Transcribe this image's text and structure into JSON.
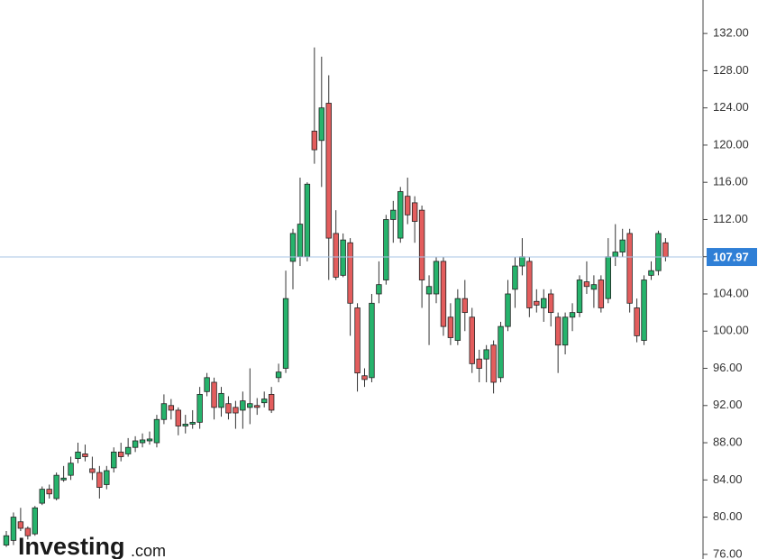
{
  "chart_data": {
    "type": "candlestick",
    "logo": {
      "brand": "Investing",
      "suffix": ".com"
    },
    "up_color": "#26b36c",
    "down_color": "#e35d5d",
    "ylim": [
      75.5,
      135.6
    ],
    "yticks": [
      {
        "value": 76,
        "label": "76.00"
      },
      {
        "value": 80,
        "label": "80.00"
      },
      {
        "value": 84,
        "label": "84.00"
      },
      {
        "value": 88,
        "label": "88.00"
      },
      {
        "value": 92,
        "label": "92.00"
      },
      {
        "value": 96,
        "label": "96.00"
      },
      {
        "value": 100,
        "label": "100.00"
      },
      {
        "value": 104,
        "label": "104.00"
      },
      {
        "value": 108,
        "label": "108.00"
      },
      {
        "value": 112,
        "label": "112.00"
      },
      {
        "value": 116,
        "label": "116.00"
      },
      {
        "value": 120,
        "label": "120.00"
      },
      {
        "value": 124,
        "label": "124.00"
      },
      {
        "value": 128,
        "label": "128.00"
      },
      {
        "value": 132,
        "label": "132.00"
      }
    ],
    "last_price": 107.97,
    "last_price_color": "#2f7fd6",
    "open": [
      77,
      77.5,
      79.5,
      78.8,
      78.2,
      81.5,
      83,
      82,
      84,
      84.5,
      86.3,
      86.8,
      85.2,
      84.8,
      83.5,
      85.3,
      87,
      86.8,
      87.5,
      88,
      88.2,
      88,
      90.5,
      92,
      91.5,
      89.8,
      90,
      90.2,
      93.5,
      94.5,
      91.8,
      92.2,
      91.8,
      91.5,
      91.8,
      92,
      92.3,
      93.2,
      95,
      96,
      107.5,
      108,
      108,
      121.5,
      120.5,
      124.5,
      110.5,
      106,
      109.5,
      102.5,
      95.2,
      95,
      104,
      105.5,
      112,
      110,
      114.5,
      113.8,
      113,
      104,
      104,
      107.5,
      101.5,
      99,
      103.5,
      101.5,
      97,
      97,
      98.5,
      95,
      100.5,
      104.5,
      107,
      107.5,
      103.2,
      102.5,
      104,
      101.5,
      98.5,
      101.5,
      102,
      105.3,
      104.5,
      105.5,
      103.5,
      108,
      108.5,
      110.5,
      102.5,
      99,
      106,
      106.5,
      109.5
    ],
    "high": [
      78.5,
      80.5,
      81,
      79,
      81.2,
      83.3,
      83.5,
      84.8,
      85.5,
      86.5,
      88,
      87.8,
      86.5,
      85.5,
      85.5,
      87.5,
      88,
      88.5,
      88.7,
      89,
      89.2,
      91,
      93.2,
      92.7,
      91.8,
      91,
      91.5,
      94,
      95.5,
      95,
      94,
      93,
      92.5,
      93.5,
      96,
      92.8,
      93.5,
      94,
      96.5,
      106.5,
      111,
      116.5,
      116,
      130.5,
      129.5,
      127.5,
      113,
      110.5,
      110,
      103,
      96,
      104,
      107.5,
      112.5,
      114,
      115.5,
      116.5,
      114.5,
      113.5,
      106,
      108,
      108,
      103,
      104.5,
      105.5,
      102.5,
      98,
      98.5,
      99,
      101,
      105.5,
      108,
      110,
      108,
      104.5,
      104.5,
      104.5,
      102,
      102,
      103,
      106,
      107.5,
      106,
      106,
      110,
      111.5,
      111,
      111,
      103.5,
      106,
      107.5,
      110.8,
      110
    ],
    "low": [
      76.8,
      77,
      78.5,
      77.6,
      78,
      81.3,
      82,
      81.8,
      83.8,
      84,
      85.8,
      86,
      84,
      82,
      83,
      84.8,
      86,
      86.5,
      87,
      87.5,
      87.8,
      87.5,
      90,
      90.5,
      88.8,
      89,
      89.5,
      89.5,
      93,
      90.5,
      90.8,
      90.5,
      89.5,
      89.5,
      90,
      91,
      91.8,
      91.2,
      94.5,
      95.5,
      104.5,
      107,
      107.5,
      118,
      115.5,
      105.5,
      105.5,
      105.8,
      99.5,
      93.5,
      94,
      94.5,
      103,
      105,
      109.5,
      109.5,
      111.5,
      109.5,
      102.5,
      98.5,
      103,
      99.5,
      98.5,
      98.5,
      100,
      95.5,
      94.5,
      94.5,
      93.3,
      94.5,
      100,
      102.5,
      106,
      101.5,
      102,
      101,
      100.5,
      95.5,
      97.5,
      100,
      101.5,
      104,
      102.5,
      102,
      103,
      107,
      108,
      102,
      98.8,
      98.5,
      105.5,
      106,
      107.5
    ],
    "close": [
      78,
      80,
      78.8,
      78,
      81,
      83,
      82.5,
      84.5,
      84.2,
      85.8,
      87,
      86.5,
      84.8,
      83.2,
      85,
      87,
      86.5,
      87.5,
      88.2,
      88.3,
      88.4,
      90.5,
      92.2,
      91.5,
      89.8,
      90,
      90.2,
      93.2,
      95,
      91.8,
      93.3,
      91.2,
      91.2,
      92.5,
      92.2,
      91.8,
      92.7,
      91.5,
      95.6,
      103.5,
      110.5,
      111.5,
      115.8,
      119.5,
      124,
      110,
      105.8,
      109.8,
      103,
      95.5,
      94.8,
      103,
      105,
      112,
      113,
      115,
      112.5,
      111.8,
      105.5,
      104.8,
      107.5,
      100.5,
      99.3,
      103.5,
      102,
      96.5,
      96,
      98,
      94.5,
      100.5,
      104,
      107,
      108,
      102.5,
      102.8,
      103.5,
      102,
      98.5,
      101.5,
      102,
      105.5,
      104.8,
      105,
      102.5,
      108,
      108.5,
      109.8,
      103,
      99.5,
      105.5,
      106.5,
      110.5,
      108
    ]
  }
}
